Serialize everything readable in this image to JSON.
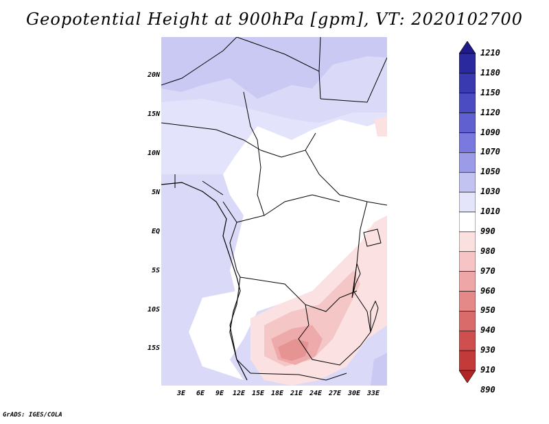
{
  "title": "Geopotential Height at 900hPa [gpm], VT: 2020102700",
  "credit": "GrADS: IGES/COLA",
  "lat_labels": [
    "20N",
    "15N",
    "10N",
    "5N",
    "EQ",
    "5S",
    "10S",
    "15S"
  ],
  "lon_labels": [
    "3E",
    "6E",
    "9E",
    "12E",
    "15E",
    "18E",
    "21E",
    "24E",
    "27E",
    "30E",
    "33E"
  ],
  "colorbar": {
    "labels": [
      "1210",
      "1180",
      "1150",
      "1120",
      "1090",
      "1070",
      "1050",
      "1030",
      "1010",
      "990",
      "980",
      "970",
      "960",
      "950",
      "940",
      "930",
      "910",
      "890"
    ],
    "colors": [
      "#1f1a8a",
      "#2a2a9e",
      "#3a3ab0",
      "#4b4bc2",
      "#6060d0",
      "#7a7ade",
      "#9b9be8",
      "#c3c3f2",
      "#e4e4fa",
      "#ffffff",
      "#fbe0e0",
      "#f6c4c4",
      "#eea6a6",
      "#e48888",
      "#da6b6b",
      "#cf4f4f",
      "#c23a3a",
      "#b32424"
    ]
  },
  "map": {
    "region": "Central Africa",
    "field_colors": {
      "high": "#c9c9f3",
      "mid": "#dadaf8",
      "low": "#ebebfc",
      "neutral": "#ffffff",
      "pink1": "#fbe1e1",
      "pink2": "#f5c6c6",
      "pink3": "#ee a9a9",
      "pink4": "#e69393"
    }
  }
}
